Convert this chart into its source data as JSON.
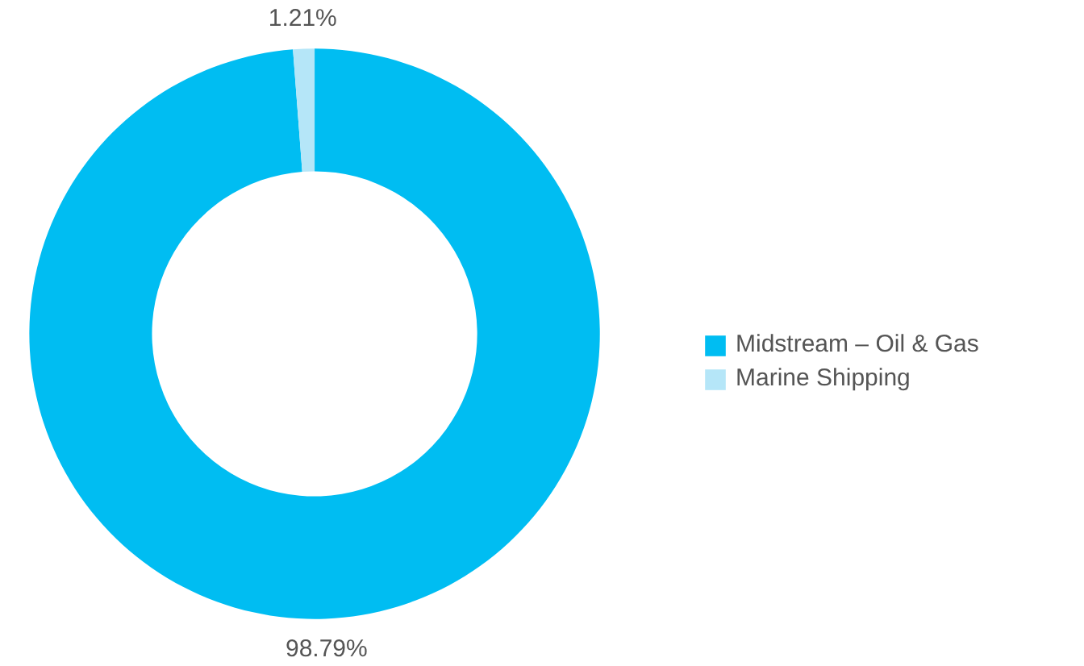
{
  "chart_data": {
    "type": "donut",
    "categories": [
      "Midstream – Oil & Gas",
      "Marine Shipping"
    ],
    "values": [
      98.79,
      1.21
    ],
    "colors": [
      "#00bdf2",
      "#b5e6f8"
    ],
    "value_labels": [
      "98.79%",
      "1.21%"
    ],
    "legend": "right"
  }
}
